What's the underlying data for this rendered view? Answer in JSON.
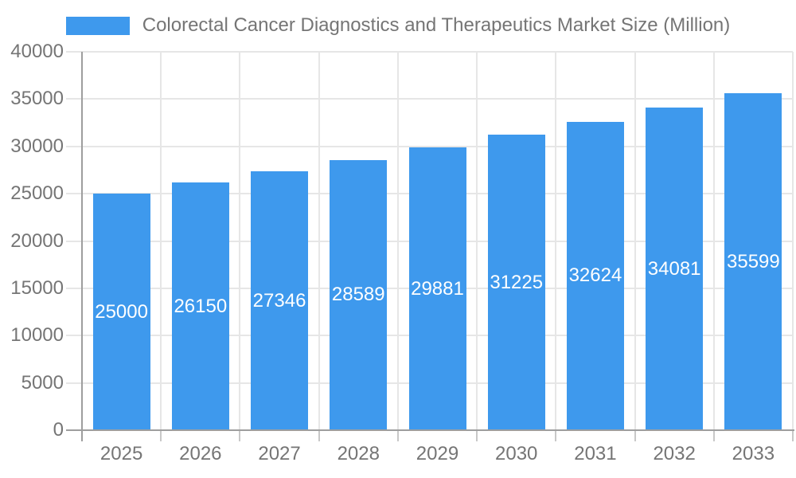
{
  "chart_data": {
    "type": "bar",
    "title": "Colorectal Cancer Diagnostics and Therapeutics Market Size (Million)",
    "legend": [
      "Colorectal Cancer Diagnostics and Therapeutics Market Size (Million)"
    ],
    "legend_position": "top",
    "categories": [
      "2025",
      "2026",
      "2027",
      "2028",
      "2029",
      "2030",
      "2031",
      "2032",
      "2033"
    ],
    "values": [
      25000,
      26150,
      27346,
      28589,
      29881,
      31225,
      32624,
      34081,
      35599
    ],
    "xlabel": "",
    "ylabel": "",
    "ylim": [
      0,
      40000
    ],
    "ytick_step": 5000,
    "ytick_labels": [
      "0",
      "5000",
      "10000",
      "15000",
      "20000",
      "25000",
      "30000",
      "35000",
      "40000"
    ],
    "grid": true,
    "bar_color": "#3E99ED",
    "bar_label_color": "#FFFFFF",
    "grid_color": "#E6E6E6",
    "axis_color": "#9E9E9E",
    "tick_color": "#C8C8C8",
    "text_color": "#757575"
  }
}
